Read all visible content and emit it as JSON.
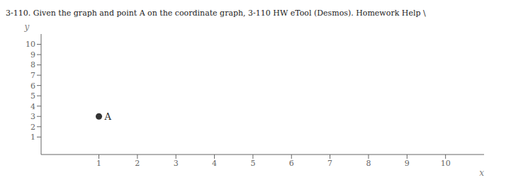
{
  "chart_data": {
    "type": "scatter",
    "title": "3-110.  Given the graph and point A on the coordinate graph, 3-110 HW eTool (Desmos).  Homework Help \\",
    "x_label": "x",
    "y_label": "y",
    "x": [
      1
    ],
    "values": [
      3
    ],
    "color": "#333333",
    "annotations": [
      {
        "text": "A",
        "x": 1,
        "y": 3
      }
    ],
    "xlim": [
      -0.5,
      11
    ],
    "ylim": [
      -0.7,
      11
    ],
    "xticks": [
      1,
      2,
      3,
      4,
      5,
      6,
      7,
      8,
      9,
      10
    ],
    "yticks": [
      1,
      2,
      3,
      4,
      5,
      6,
      7,
      8,
      9,
      10
    ],
    "grid": false
  }
}
